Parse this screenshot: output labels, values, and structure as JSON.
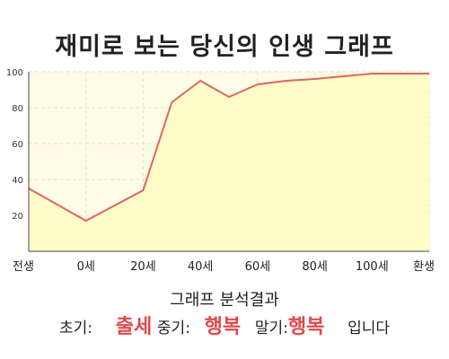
{
  "title": "재미로 보는 당신의 인생 그래프",
  "colors": {
    "line": "#e06363",
    "fill": "#fffcc8",
    "plot_bg": "#fffde6",
    "grid": "#e6e2bf",
    "accent_text": "#e04a4a"
  },
  "chart_data": {
    "type": "area",
    "x_labels": [
      "전생",
      "0세",
      "20세",
      "40세",
      "60세",
      "80세",
      "100세",
      "환생"
    ],
    "points": [
      {
        "x": 0,
        "y": 35
      },
      {
        "x": 1,
        "y": 17
      },
      {
        "x": 2,
        "y": 34
      },
      {
        "x": 2.5,
        "y": 83
      },
      {
        "x": 3,
        "y": 95
      },
      {
        "x": 3.5,
        "y": 86
      },
      {
        "x": 4,
        "y": 93
      },
      {
        "x": 4.5,
        "y": 95
      },
      {
        "x": 5,
        "y": 96
      },
      {
        "x": 5.5,
        "y": 97.5
      },
      {
        "x": 6,
        "y": 99
      },
      {
        "x": 7,
        "y": 99
      }
    ],
    "y_ticks": [
      20,
      40,
      60,
      80,
      100
    ],
    "ylim": [
      0,
      100
    ],
    "xlim": [
      0,
      7
    ],
    "grid": true
  },
  "result": {
    "heading": "그래프 분석결과",
    "early_label": "초기:",
    "early_value": "출세",
    "mid_label": "중기:",
    "mid_value": "행복",
    "late_label": "말기:",
    "late_value": "행복",
    "ending": "입니다"
  }
}
